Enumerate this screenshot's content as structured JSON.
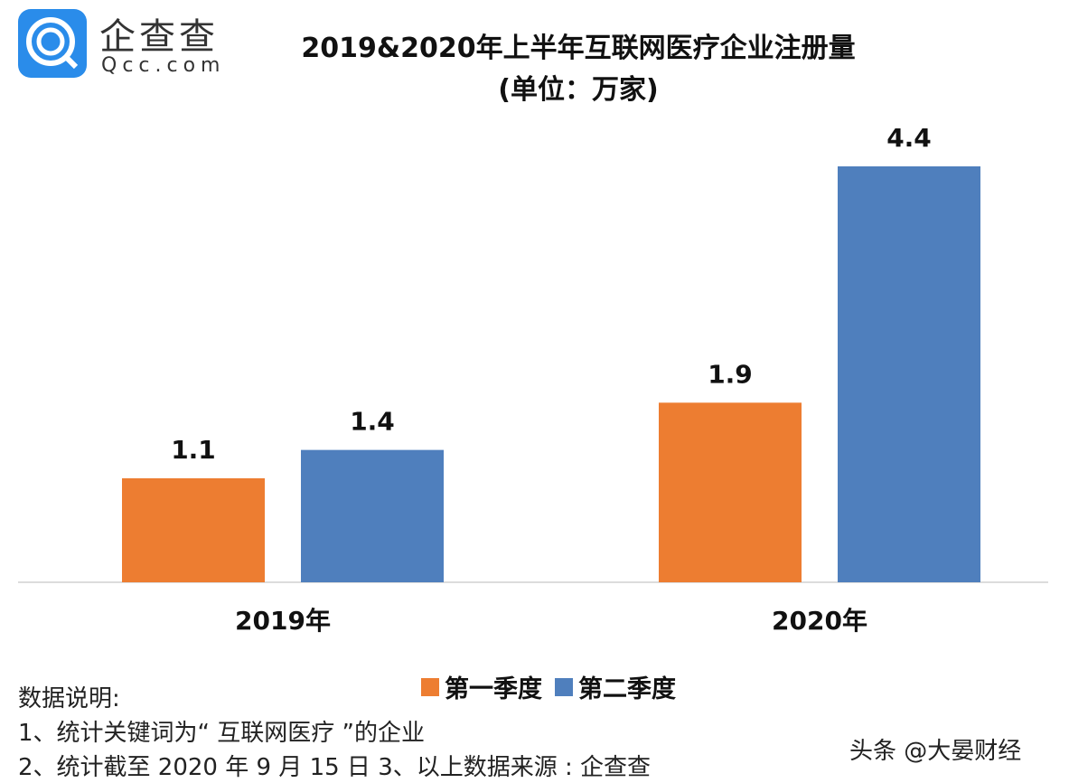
{
  "logo": {
    "cn": "企查查",
    "en": "Qcc.com",
    "color": "#2a8cea"
  },
  "chart_data": {
    "type": "bar",
    "title": "2019&2020年上半年互联网医疗企业注册量",
    "subtitle": "(单位：万家)",
    "categories": [
      "2019年",
      "2020年"
    ],
    "series": [
      {
        "name": "第一季度",
        "values": [
          1.1,
          1.9
        ],
        "color": "#ed7d31"
      },
      {
        "name": "第二季度",
        "values": [
          1.4,
          4.4
        ],
        "color": "#4f7fbd"
      }
    ],
    "ylim": [
      0,
      4.4
    ],
    "grid": false,
    "legend": "bottom"
  },
  "notes": {
    "heading": "数据说明:",
    "line1": "1、统计关键词为“ 互联网医疗 ”的企业",
    "line2": "2、统计截至 2020 年 9 月 15 日  3、以上数据来源 : 企查查"
  },
  "watermark": "头条 @大晏财经"
}
